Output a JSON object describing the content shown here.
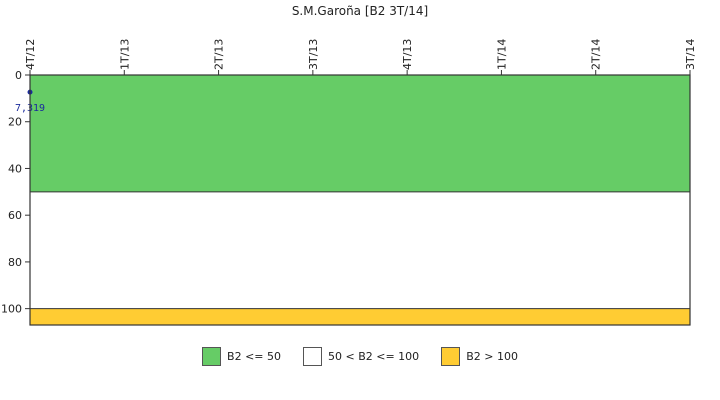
{
  "chart_data": {
    "type": "line",
    "title": "S.M.Garoña [B2 3T/14]",
    "x_categories": [
      "4T/12",
      "1T/13",
      "2T/13",
      "3T/13",
      "4T/13",
      "1T/14",
      "2T/14",
      "3T/14"
    ],
    "y_ticks": [
      0,
      20,
      40,
      60,
      80,
      100
    ],
    "ylim": [
      0,
      107
    ],
    "y_inverted": true,
    "bands": [
      {
        "from": 0,
        "to": 50,
        "color": "#66cc66",
        "label": "B2 <= 50"
      },
      {
        "from": 50,
        "to": 100,
        "color": "#ffffff",
        "label": "50 < B2 <= 100"
      },
      {
        "from": 100,
        "to": 107,
        "color": "#ffcc33",
        "label": "B2 > 100"
      }
    ],
    "series": [
      {
        "x": [
          "4T/12"
        ],
        "values": [
          7.319
        ],
        "color": "#1a2a9c",
        "labels": [
          "7,319"
        ]
      }
    ]
  }
}
